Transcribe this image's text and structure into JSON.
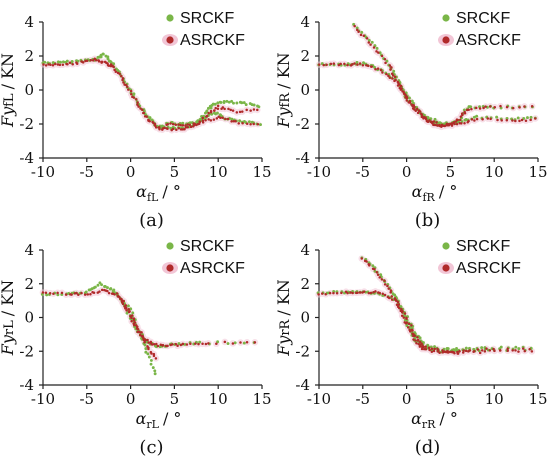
{
  "colors": {
    "SRCKF": "#7ab648",
    "ASRCKF": "#b02a2a",
    "ASRCKF_halo": "#f2c6d6"
  },
  "chart_data": [
    {
      "type": "scatter",
      "caption": "(a)",
      "ylabel_main": "Fy",
      "ylabel_sub": "fL",
      "ylabel_unit": "/ KN",
      "xlabel_main": "α",
      "xlabel_sub": "fL",
      "xlabel_unit": "/ °",
      "xlim": [
        -10,
        15
      ],
      "ylim": [
        -4,
        4
      ],
      "xticks": [
        "-10",
        "-5",
        "0",
        "5",
        "10",
        "15"
      ],
      "yticks": [
        "4",
        "2",
        "0",
        "-2",
        "-4"
      ],
      "legend": [
        "SRCKF",
        "ASRCKF"
      ],
      "series": [
        {
          "name": "SRCKF",
          "paths": [
            [
              [
                -10,
                1.6
              ],
              [
                -8,
                1.6
              ],
              [
                -6,
                1.7
              ],
              [
                -4,
                1.8
              ],
              [
                -3,
                2.1
              ],
              [
                -2,
                1.5
              ],
              [
                -1,
                0.8
              ],
              [
                0,
                0.0
              ],
              [
                1,
                -0.9
              ],
              [
                2,
                -1.6
              ],
              [
                3,
                -2.1
              ],
              [
                4,
                -2.2
              ],
              [
                6,
                -2.2
              ],
              [
                7.5,
                -2.0
              ],
              [
                8.5,
                -1.4
              ],
              [
                9.5,
                -0.8
              ],
              [
                11,
                -0.7
              ],
              [
                13,
                -0.8
              ],
              [
                15,
                -1.0
              ]
            ],
            [
              [
                4,
                -1.9
              ],
              [
                6,
                -2.0
              ],
              [
                8,
                -1.8
              ],
              [
                9.5,
                -1.3
              ],
              [
                11,
                -1.7
              ],
              [
                13,
                -1.9
              ],
              [
                15,
                -2.0
              ]
            ]
          ]
        },
        {
          "name": "ASRCKF",
          "paths": [
            [
              [
                -10,
                1.5
              ],
              [
                -8,
                1.5
              ],
              [
                -6,
                1.6
              ],
              [
                -4,
                1.8
              ],
              [
                -3,
                1.6
              ],
              [
                -2,
                1.4
              ],
              [
                -1,
                0.7
              ],
              [
                0,
                -0.1
              ],
              [
                1,
                -1.0
              ],
              [
                2,
                -1.7
              ],
              [
                3,
                -2.2
              ],
              [
                4,
                -2.3
              ],
              [
                6,
                -2.3
              ],
              [
                7.5,
                -2.1
              ],
              [
                9,
                -1.4
              ],
              [
                10,
                -1.0
              ],
              [
                12,
                -1.3
              ],
              [
                15,
                -1.1
              ]
            ],
            [
              [
                4,
                -2.0
              ],
              [
                6,
                -2.1
              ],
              [
                8,
                -1.9
              ],
              [
                10,
                -1.6
              ],
              [
                12,
                -1.9
              ],
              [
                15,
                -2.0
              ]
            ]
          ]
        }
      ]
    },
    {
      "type": "scatter",
      "caption": "(b)",
      "ylabel_main": "Fy",
      "ylabel_sub": "fR",
      "ylabel_unit": "/ KN",
      "xlabel_main": "α",
      "xlabel_sub": "fR",
      "xlabel_unit": "/ °",
      "xlim": [
        -10,
        15
      ],
      "ylim": [
        -4,
        4
      ],
      "xticks": [
        "-10",
        "-5",
        "0",
        "5",
        "10",
        "15"
      ],
      "yticks": [
        "4",
        "2",
        "0",
        "-2",
        "-4"
      ],
      "legend": [
        "SRCKF",
        "ASRCKF"
      ],
      "series": [
        {
          "name": "SRCKF",
          "paths": [
            [
              [
                -10,
                1.5
              ],
              [
                -7,
                1.5
              ],
              [
                -5,
                1.6
              ],
              [
                -3,
                1.2
              ],
              [
                -1,
                0.5
              ],
              [
                0,
                -0.3
              ],
              [
                1,
                -1.0
              ],
              [
                2,
                -1.6
              ],
              [
                3,
                -1.9
              ],
              [
                4,
                -2.0
              ],
              [
                5,
                -2.0
              ],
              [
                6,
                -1.8
              ],
              [
                7,
                -1.0
              ],
              [
                10,
                -1.0
              ],
              [
                15,
                -1.0
              ]
            ],
            [
              [
                -6,
                3.8
              ],
              [
                -4,
                2.8
              ],
              [
                -2,
                1.5
              ],
              [
                -1,
                0.6
              ],
              [
                0,
                -0.5
              ],
              [
                2,
                -1.5
              ],
              [
                4,
                -2.0
              ],
              [
                6,
                -1.9
              ],
              [
                8,
                -1.6
              ],
              [
                12,
                -1.7
              ],
              [
                15,
                -1.6
              ]
            ]
          ]
        },
        {
          "name": "ASRCKF",
          "paths": [
            [
              [
                -10,
                1.5
              ],
              [
                -7,
                1.5
              ],
              [
                -5,
                1.5
              ],
              [
                -3,
                1.2
              ],
              [
                -1,
                0.4
              ],
              [
                0,
                -0.4
              ],
              [
                1,
                -1.1
              ],
              [
                2,
                -1.7
              ],
              [
                3,
                -2.0
              ],
              [
                4,
                -2.1
              ],
              [
                5,
                -2.0
              ],
              [
                6,
                -1.7
              ],
              [
                7,
                -1.1
              ],
              [
                10,
                -1.0
              ],
              [
                15,
                -1.0
              ]
            ],
            [
              [
                -6,
                3.7
              ],
              [
                -4,
                2.7
              ],
              [
                -2,
                1.4
              ],
              [
                -1,
                0.5
              ],
              [
                0,
                -0.6
              ],
              [
                2,
                -1.6
              ],
              [
                4,
                -2.1
              ],
              [
                6,
                -2.0
              ],
              [
                8,
                -1.7
              ],
              [
                12,
                -1.8
              ],
              [
                15,
                -1.7
              ]
            ]
          ]
        }
      ]
    },
    {
      "type": "scatter",
      "caption": "(c)",
      "ylabel_main": "Fy",
      "ylabel_sub": "rL",
      "ylabel_unit": "/ KN",
      "xlabel_main": "α",
      "xlabel_sub": "rL",
      "xlabel_unit": "/ °",
      "xlim": [
        -10,
        15
      ],
      "ylim": [
        -4,
        4
      ],
      "xticks": [
        "-10",
        "-5",
        "0",
        "5",
        "10",
        "15"
      ],
      "yticks": [
        "4",
        "2",
        "0",
        "-2",
        "-4"
      ],
      "legend": [
        "SRCKF",
        "ASRCKF"
      ],
      "series": [
        {
          "name": "SRCKF",
          "paths": [
            [
              [
                -10,
                1.4
              ],
              [
                -7,
                1.4
              ],
              [
                -5,
                1.5
              ],
              [
                -3.5,
                2.0
              ],
              [
                -2,
                1.6
              ],
              [
                -1,
                1.0
              ],
              [
                0,
                0.0
              ],
              [
                1,
                -0.9
              ],
              [
                2,
                -1.5
              ],
              [
                3,
                -1.7
              ],
              [
                5,
                -1.6
              ],
              [
                8,
                -1.5
              ],
              [
                15,
                -1.5
              ]
            ],
            [
              [
                -2,
                1.6
              ],
              [
                0,
                0.5
              ],
              [
                1,
                -1.0
              ],
              [
                2,
                -2.2
              ],
              [
                3,
                -3.5
              ]
            ]
          ]
        },
        {
          "name": "ASRCKF",
          "paths": [
            [
              [
                -10,
                1.5
              ],
              [
                -7,
                1.4
              ],
              [
                -5,
                1.4
              ],
              [
                -3,
                1.6
              ],
              [
                -1.5,
                1.3
              ],
              [
                -0.5,
                0.6
              ],
              [
                0.5,
                -0.5
              ],
              [
                1.5,
                -1.2
              ],
              [
                2.5,
                -1.6
              ],
              [
                4,
                -1.7
              ],
              [
                6,
                -1.6
              ],
              [
                9,
                -1.5
              ],
              [
                15,
                -1.5
              ]
            ],
            [
              [
                -1.5,
                1.4
              ],
              [
                0,
                0.3
              ],
              [
                1,
                -0.8
              ],
              [
                2,
                -1.8
              ],
              [
                3,
                -2.5
              ]
            ]
          ]
        }
      ]
    },
    {
      "type": "scatter",
      "caption": "(d)",
      "ylabel_main": "Fy",
      "ylabel_sub": "rR",
      "ylabel_unit": "/ KN",
      "xlabel_main": "α",
      "xlabel_sub": "rR",
      "xlabel_unit": "/ °",
      "xlim": [
        -10,
        15
      ],
      "ylim": [
        -4,
        4
      ],
      "xticks": [
        "-10",
        "-5",
        "0",
        "5",
        "10",
        "15"
      ],
      "yticks": [
        "4",
        "2",
        "0",
        "-2",
        "-4"
      ],
      "legend": [
        "SRCKF",
        "ASRCKF"
      ],
      "series": [
        {
          "name": "SRCKF",
          "paths": [
            [
              [
                -10,
                1.5
              ],
              [
                -7,
                1.5
              ],
              [
                -5,
                1.5
              ],
              [
                -3,
                1.4
              ],
              [
                -1,
                1.0
              ],
              [
                0,
                0.0
              ],
              [
                1,
                -1.0
              ],
              [
                2,
                -1.6
              ],
              [
                4,
                -1.9
              ],
              [
                6,
                -1.9
              ],
              [
                9,
                -1.8
              ],
              [
                15,
                -1.8
              ]
            ],
            [
              [
                -5,
                3.6
              ],
              [
                -3.5,
                2.8
              ],
              [
                -2,
                1.8
              ],
              [
                -1,
                1.0
              ],
              [
                0,
                -0.3
              ],
              [
                1,
                -1.3
              ],
              [
                2,
                -1.8
              ],
              [
                4,
                -2.0
              ],
              [
                6,
                -2.0
              ],
              [
                10,
                -1.9
              ],
              [
                15,
                -1.9
              ]
            ]
          ]
        },
        {
          "name": "ASRCKF",
          "paths": [
            [
              [
                -10,
                1.4
              ],
              [
                -7,
                1.5
              ],
              [
                -5,
                1.5
              ],
              [
                -3,
                1.5
              ],
              [
                -1,
                0.9
              ],
              [
                0,
                -0.1
              ],
              [
                1,
                -1.1
              ],
              [
                2,
                -1.7
              ],
              [
                4,
                -2.0
              ],
              [
                6,
                -2.0
              ],
              [
                9,
                -1.9
              ],
              [
                15,
                -1.9
              ]
            ],
            [
              [
                -5,
                3.5
              ],
              [
                -3.5,
                2.7
              ],
              [
                -2,
                1.7
              ],
              [
                -1,
                0.8
              ],
              [
                0,
                -0.4
              ],
              [
                1,
                -1.4
              ],
              [
                2,
                -1.9
              ],
              [
                4,
                -2.1
              ],
              [
                6,
                -2.1
              ],
              [
                10,
                -2.0
              ],
              [
                15,
                -2.0
              ]
            ]
          ]
        }
      ]
    }
  ]
}
